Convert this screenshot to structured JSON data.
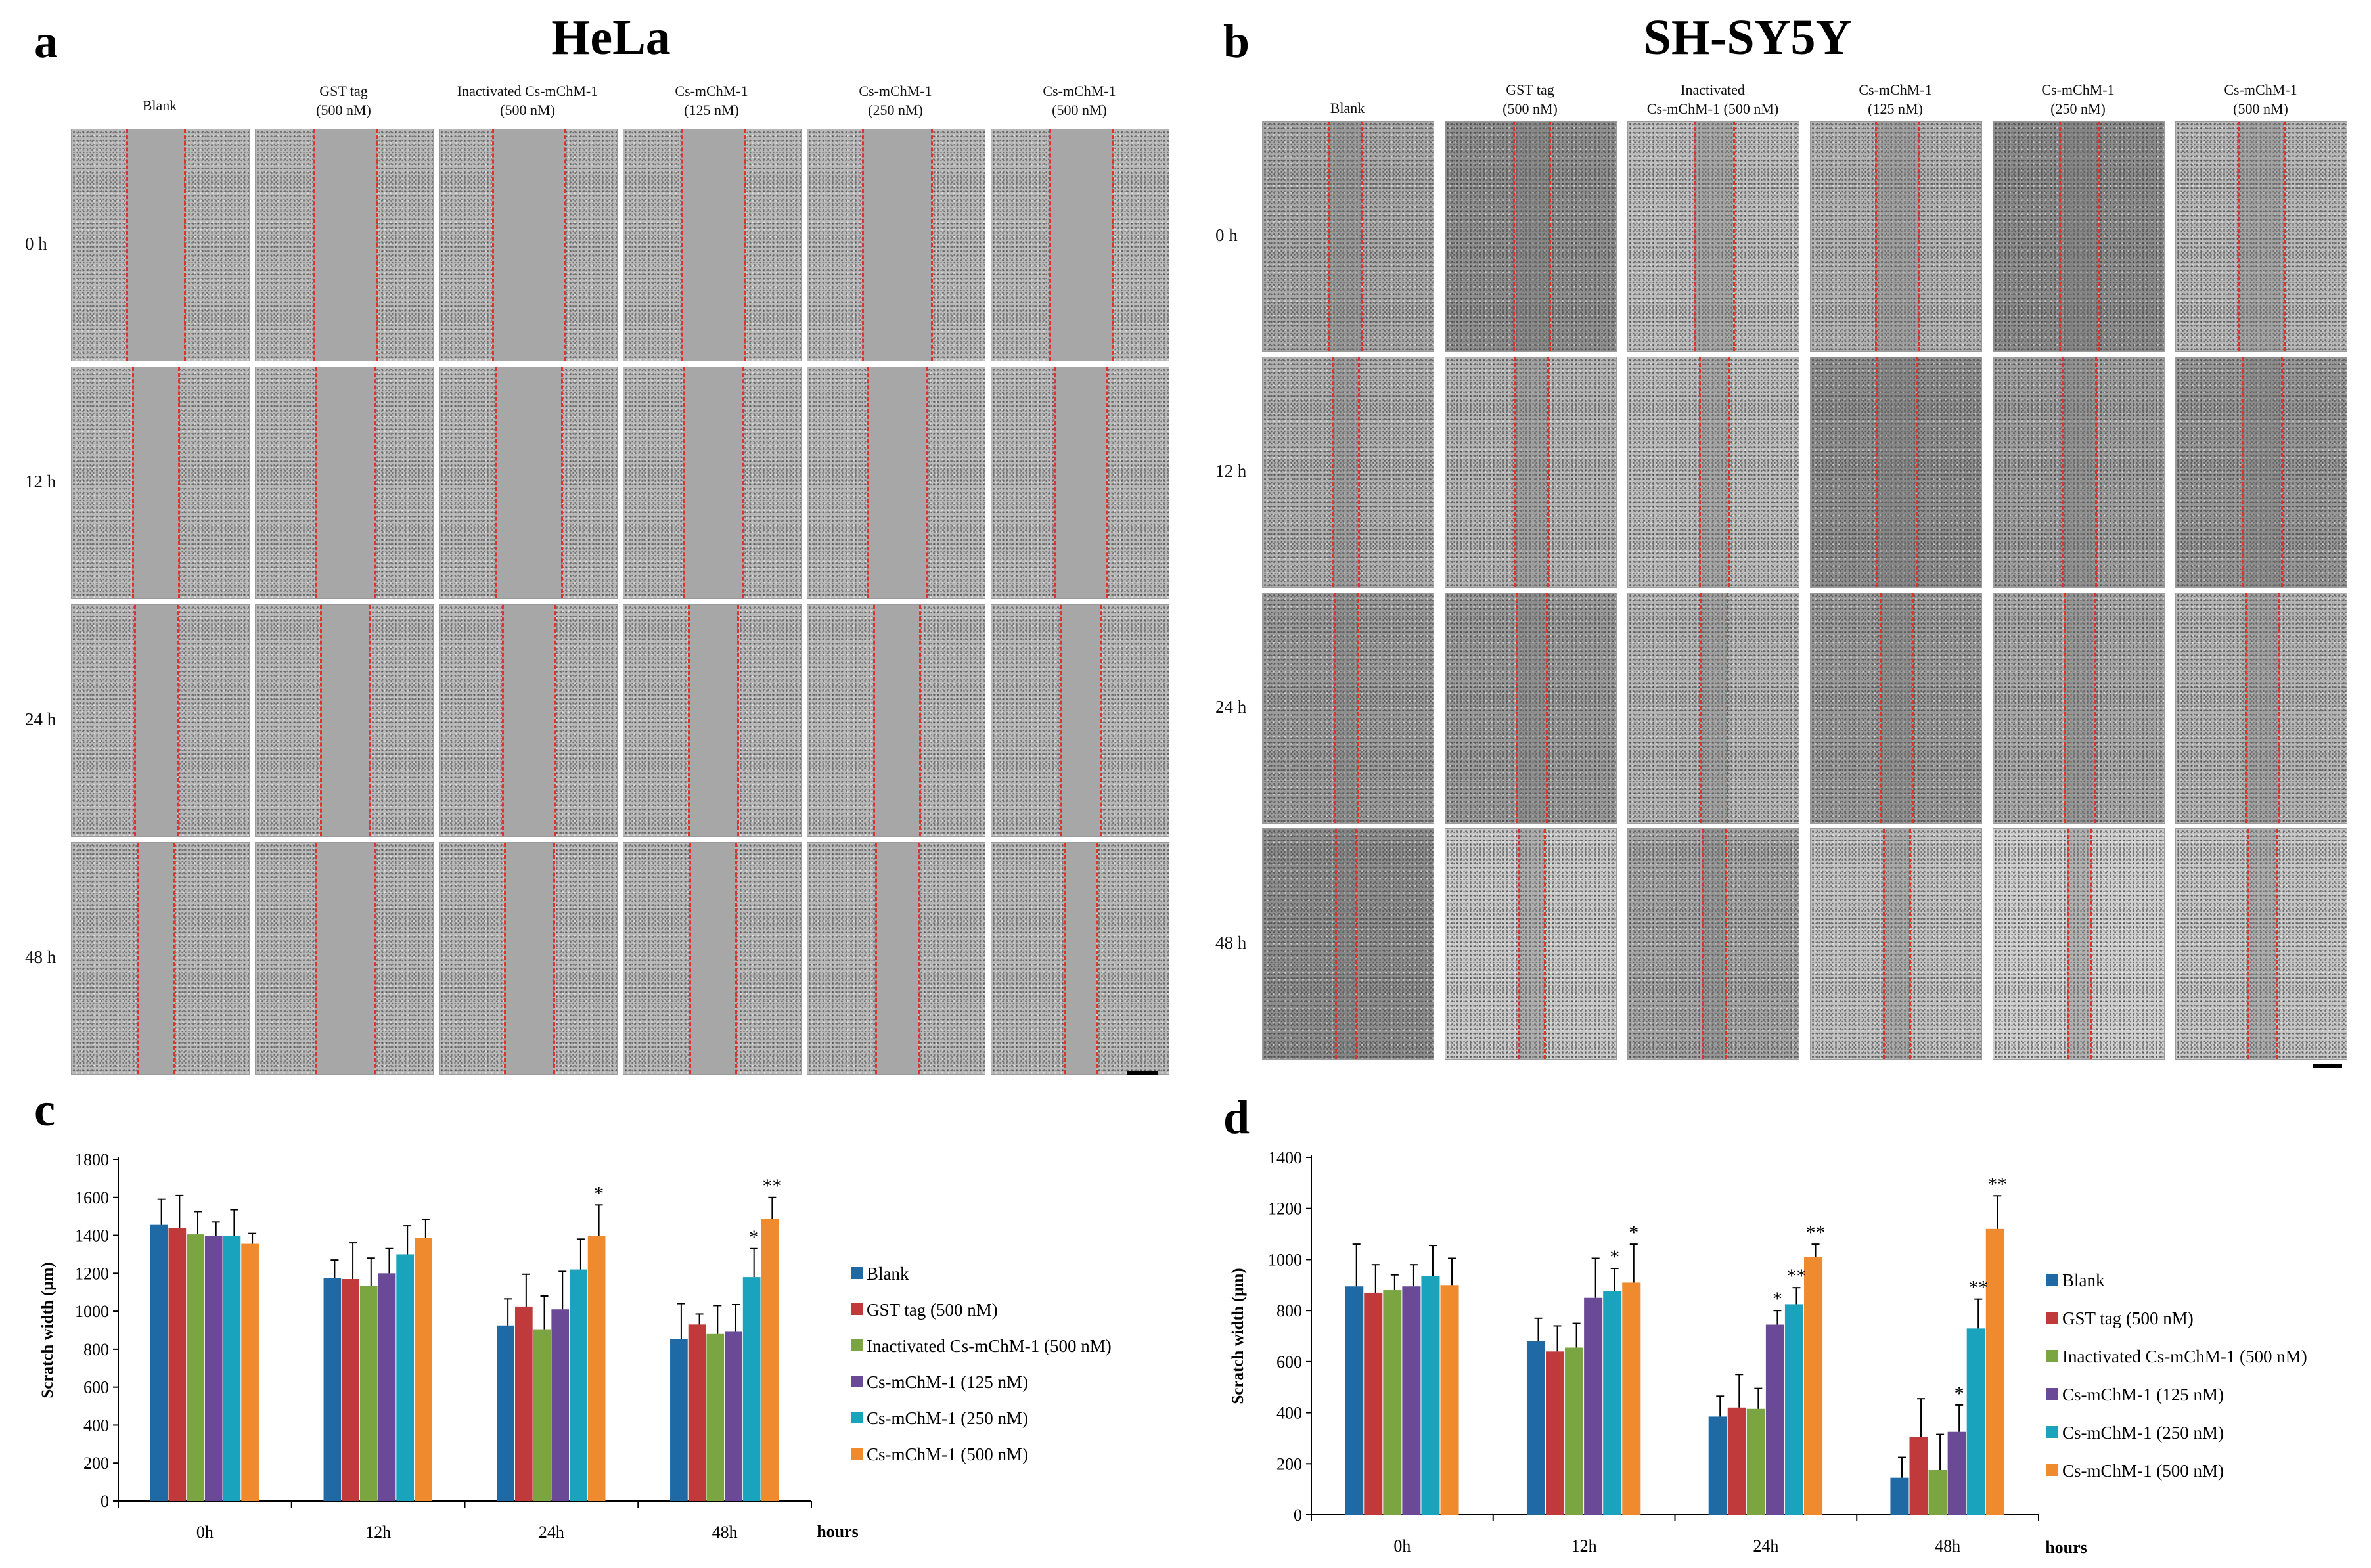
{
  "panels": {
    "a": {
      "letter": "a",
      "title": "HeLa"
    },
    "b": {
      "letter": "b",
      "title": "SH-SY5Y"
    },
    "c": {
      "letter": "c"
    },
    "d": {
      "letter": "d"
    }
  },
  "grids": [
    {
      "id": "hela",
      "rows": [
        "0 h",
        "12 h",
        "24 h",
        "48 h"
      ],
      "columns": [
        [
          "Blank"
        ],
        [
          "GST tag",
          "(500 nM)"
        ],
        [
          "Inactivated Cs-mChM-1",
          "(500 nM)"
        ],
        [
          "Cs-mChM-1",
          "(125 nM)"
        ],
        [
          "Cs-mChM-1",
          "(250 nM)"
        ],
        [
          "Cs-mChM-1",
          "(500 nM)"
        ]
      ]
    },
    {
      "id": "shsy5y",
      "rows": [
        "0 h",
        "12 h",
        "24 h",
        "48 h"
      ],
      "columns": [
        [
          "Blank"
        ],
        [
          "GST tag",
          "(500 nM)"
        ],
        [
          "Inactivated",
          "Cs-mChM-1 (500 nM)"
        ],
        [
          "Cs-mChM-1",
          "(125 nM)"
        ],
        [
          "Cs-mChM-1",
          "(250 nM)"
        ],
        [
          "Cs-mChM-1",
          "(500 nM)"
        ]
      ]
    }
  ],
  "colors": {
    "Blank": "#1f6aa5",
    "GST tag (500 nM)": "#c0393b",
    "Inactivated Cs-mChM-1 (500 nM)": "#7aa540",
    "Cs-mChM-1 (125 nM)": "#6a4a96",
    "Cs-mChM-1 (250 nM)": "#1aa3bc",
    "Cs-mChM-1 (500 nM)": "#f08a2e",
    "scratch_line": "#e0322d"
  },
  "chart_data": [
    {
      "id": "c",
      "type": "bar",
      "title": "",
      "xlabel": "hours",
      "ylabel": "Scratch width (μm)",
      "categories": [
        "0h",
        "12h",
        "24h",
        "48h"
      ],
      "ylim": [
        0,
        1800
      ],
      "yticks": [
        0,
        200,
        400,
        600,
        800,
        1000,
        1200,
        1400,
        1600,
        1800
      ],
      "legend_position": "right",
      "series": [
        {
          "name": "Blank",
          "values": [
            1455,
            1175,
            925,
            855
          ],
          "errors": [
            135,
            95,
            140,
            185
          ]
        },
        {
          "name": "GST tag (500 nM)",
          "values": [
            1440,
            1170,
            1025,
            930
          ],
          "errors": [
            170,
            190,
            170,
            55
          ]
        },
        {
          "name": "Inactivated Cs-mChM-1 (500 nM)",
          "values": [
            1405,
            1135,
            905,
            880
          ],
          "errors": [
            120,
            145,
            175,
            150
          ]
        },
        {
          "name": "Cs-mChM-1 (125 nM)",
          "values": [
            1395,
            1200,
            1010,
            895
          ],
          "errors": [
            75,
            130,
            200,
            140
          ]
        },
        {
          "name": "Cs-mChM-1 (250 nM)",
          "values": [
            1395,
            1300,
            1220,
            1180
          ],
          "errors": [
            140,
            150,
            160,
            150
          ]
        },
        {
          "name": "Cs-mChM-1 (500 nM)",
          "values": [
            1355,
            1385,
            1395,
            1485
          ],
          "errors": [
            55,
            100,
            165,
            115
          ]
        }
      ],
      "annotations": [
        {
          "series": "Cs-mChM-1 (500 nM)",
          "category": "24h",
          "text": "*"
        },
        {
          "series": "Cs-mChM-1 (250 nM)",
          "category": "48h",
          "text": "*"
        },
        {
          "series": "Cs-mChM-1 (500 nM)",
          "category": "48h",
          "text": "**"
        }
      ]
    },
    {
      "id": "d",
      "type": "bar",
      "title": "",
      "xlabel": "hours",
      "ylabel": "Scratch width (μm)",
      "categories": [
        "0h",
        "12h",
        "24h",
        "48h"
      ],
      "ylim": [
        0,
        1400
      ],
      "yticks": [
        0,
        200,
        400,
        600,
        800,
        1000,
        1200,
        1400
      ],
      "legend_position": "right",
      "series": [
        {
          "name": "Blank",
          "values": [
            895,
            680,
            385,
            145
          ],
          "errors": [
            165,
            90,
            80,
            80
          ]
        },
        {
          "name": "GST tag (500 nM)",
          "values": [
            870,
            640,
            420,
            305
          ],
          "errors": [
            110,
            100,
            130,
            150
          ]
        },
        {
          "name": "Inactivated Cs-mChM-1 (500 nM)",
          "values": [
            880,
            655,
            415,
            175
          ],
          "errors": [
            60,
            95,
            80,
            140
          ]
        },
        {
          "name": "Cs-mChM-1 (125 nM)",
          "values": [
            895,
            850,
            745,
            325
          ],
          "errors": [
            85,
            155,
            55,
            105
          ]
        },
        {
          "name": "Cs-mChM-1 (250 nM)",
          "values": [
            935,
            875,
            825,
            730
          ],
          "errors": [
            120,
            90,
            65,
            115
          ]
        },
        {
          "name": "Cs-mChM-1 (500 nM)",
          "values": [
            900,
            910,
            1010,
            1120
          ],
          "errors": [
            105,
            150,
            50,
            130
          ]
        }
      ],
      "annotations": [
        {
          "series": "Cs-mChM-1 (250 nM)",
          "category": "12h",
          "text": "*"
        },
        {
          "series": "Cs-mChM-1 (500 nM)",
          "category": "12h",
          "text": "*"
        },
        {
          "series": "Cs-mChM-1 (125 nM)",
          "category": "24h",
          "text": "*"
        },
        {
          "series": "Cs-mChM-1 (250 nM)",
          "category": "24h",
          "text": "**"
        },
        {
          "series": "Cs-mChM-1 (500 nM)",
          "category": "24h",
          "text": "**"
        },
        {
          "series": "Cs-mChM-1 (125 nM)",
          "category": "48h",
          "text": "*"
        },
        {
          "series": "Cs-mChM-1 (250 nM)",
          "category": "48h",
          "text": "**"
        },
        {
          "series": "Cs-mChM-1 (500 nM)",
          "category": "48h",
          "text": "**"
        }
      ]
    }
  ]
}
